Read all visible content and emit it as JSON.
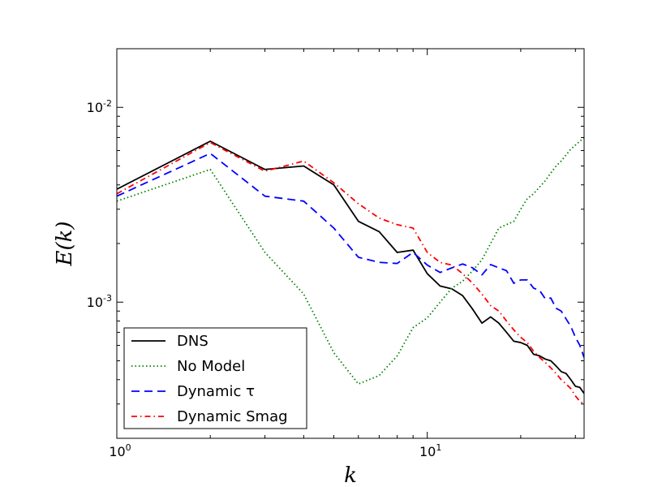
{
  "chart_data": {
    "type": "line",
    "xscale": "log",
    "yscale": "log",
    "xlim": [
      1,
      32
    ],
    "ylim": [
      0.0002,
      0.02
    ],
    "xlabel": "k",
    "ylabel": "E(k)",
    "x_ticks": [
      {
        "base": "10",
        "exp": "0",
        "value": 1
      },
      {
        "base": "10",
        "exp": "1",
        "value": 10
      }
    ],
    "y_ticks": [
      {
        "base": "10",
        "exp": "-3",
        "value": 0.001
      },
      {
        "base": "10",
        "exp": "-2",
        "value": 0.01
      }
    ],
    "legend_position": "lower-left",
    "series": [
      {
        "name": "DNS",
        "color": "#000000",
        "style": "solid",
        "points": [
          [
            1,
            0.0038
          ],
          [
            2,
            0.0067
          ],
          [
            3,
            0.0048
          ],
          [
            4,
            0.005
          ],
          [
            5,
            0.004
          ],
          [
            6,
            0.0026
          ],
          [
            7,
            0.0023
          ],
          [
            8,
            0.0018
          ],
          [
            9,
            0.00185
          ],
          [
            10,
            0.0014
          ],
          [
            11,
            0.00121
          ],
          [
            12,
            0.00117
          ],
          [
            13,
            0.00108
          ],
          [
            14,
            0.00092
          ],
          [
            15,
            0.00078
          ],
          [
            16,
            0.00084
          ],
          [
            17,
            0.00078
          ],
          [
            18,
            0.0007
          ],
          [
            19,
            0.00063
          ],
          [
            20,
            0.00062
          ],
          [
            21,
            0.0006
          ],
          [
            22,
            0.00054
          ],
          [
            23,
            0.00053
          ],
          [
            24,
            0.00051
          ],
          [
            25,
            0.0005
          ],
          [
            26,
            0.00047
          ],
          [
            27,
            0.00044
          ],
          [
            28,
            0.00043
          ],
          [
            29,
            0.0004
          ],
          [
            30,
            0.00037
          ],
          [
            31,
            0.000365
          ],
          [
            32,
            0.00034
          ]
        ]
      },
      {
        "name": "No Model",
        "color": "#008000",
        "style": "dotted",
        "points": [
          [
            1,
            0.0033
          ],
          [
            2,
            0.0048
          ],
          [
            3,
            0.0018
          ],
          [
            4,
            0.0011
          ],
          [
            5,
            0.00055
          ],
          [
            6,
            0.00038
          ],
          [
            7,
            0.00042
          ],
          [
            8,
            0.00053
          ],
          [
            9,
            0.00074
          ],
          [
            10,
            0.00083
          ],
          [
            11,
            0.001
          ],
          [
            12,
            0.00118
          ],
          [
            13,
            0.00128
          ],
          [
            14,
            0.00145
          ],
          [
            15,
            0.00165
          ],
          [
            16,
            0.002
          ],
          [
            17,
            0.0024
          ],
          [
            18,
            0.0025
          ],
          [
            19,
            0.0026
          ],
          [
            20,
            0.003
          ],
          [
            21,
            0.0034
          ],
          [
            22,
            0.0036
          ],
          [
            23,
            0.0039
          ],
          [
            24,
            0.0042
          ],
          [
            25,
            0.0046
          ],
          [
            26,
            0.005
          ],
          [
            27,
            0.0053
          ],
          [
            28,
            0.0057
          ],
          [
            29,
            0.0061
          ],
          [
            30,
            0.0064
          ],
          [
            31,
            0.0067
          ],
          [
            32,
            0.007
          ]
        ]
      },
      {
        "name": "Dynamic τ",
        "color": "#0000ff",
        "style": "dashed",
        "points": [
          [
            1,
            0.0035
          ],
          [
            2,
            0.0058
          ],
          [
            3,
            0.0035
          ],
          [
            4,
            0.0033
          ],
          [
            5,
            0.0024
          ],
          [
            6,
            0.0017
          ],
          [
            7,
            0.0016
          ],
          [
            8,
            0.00158
          ],
          [
            9,
            0.0018
          ],
          [
            10,
            0.00155
          ],
          [
            11,
            0.00142
          ],
          [
            12,
            0.0015
          ],
          [
            13,
            0.00157
          ],
          [
            14,
            0.0015
          ],
          [
            15,
            0.00138
          ],
          [
            16,
            0.00156
          ],
          [
            17,
            0.0015
          ],
          [
            18,
            0.00145
          ],
          [
            19,
            0.00125
          ],
          [
            20,
            0.0013
          ],
          [
            21,
            0.0013
          ],
          [
            22,
            0.00118
          ],
          [
            23,
            0.00115
          ],
          [
            24,
            0.00104
          ],
          [
            25,
            0.00105
          ],
          [
            26,
            0.00093
          ],
          [
            27,
            0.0009
          ],
          [
            28,
            0.00082
          ],
          [
            29,
            0.00075
          ],
          [
            30,
            0.00066
          ],
          [
            31,
            0.0006
          ],
          [
            32,
            0.00052
          ]
        ]
      },
      {
        "name": "Dynamic Smag",
        "color": "#ff0000",
        "style": "dashdot",
        "points": [
          [
            1,
            0.0036
          ],
          [
            2,
            0.0066
          ],
          [
            3,
            0.0047
          ],
          [
            4,
            0.0053
          ],
          [
            5,
            0.0041
          ],
          [
            6,
            0.0032
          ],
          [
            7,
            0.0027
          ],
          [
            8,
            0.0025
          ],
          [
            9,
            0.0024
          ],
          [
            10,
            0.0018
          ],
          [
            11,
            0.0016
          ],
          [
            12,
            0.00155
          ],
          [
            13,
            0.0014
          ],
          [
            14,
            0.00125
          ],
          [
            15,
            0.0011
          ],
          [
            16,
            0.00096
          ],
          [
            17,
            0.0009
          ],
          [
            18,
            0.0008
          ],
          [
            19,
            0.00072
          ],
          [
            20,
            0.00066
          ],
          [
            21,
            0.00062
          ],
          [
            22,
            0.00056
          ],
          [
            23,
            0.00052
          ],
          [
            24,
            0.00049
          ],
          [
            25,
            0.00046
          ],
          [
            26,
            0.00043
          ],
          [
            27,
            0.0004
          ],
          [
            28,
            0.00038
          ],
          [
            29,
            0.00036
          ],
          [
            30,
            0.00033
          ],
          [
            31,
            0.00031
          ],
          [
            32,
            0.0003
          ]
        ]
      }
    ]
  }
}
